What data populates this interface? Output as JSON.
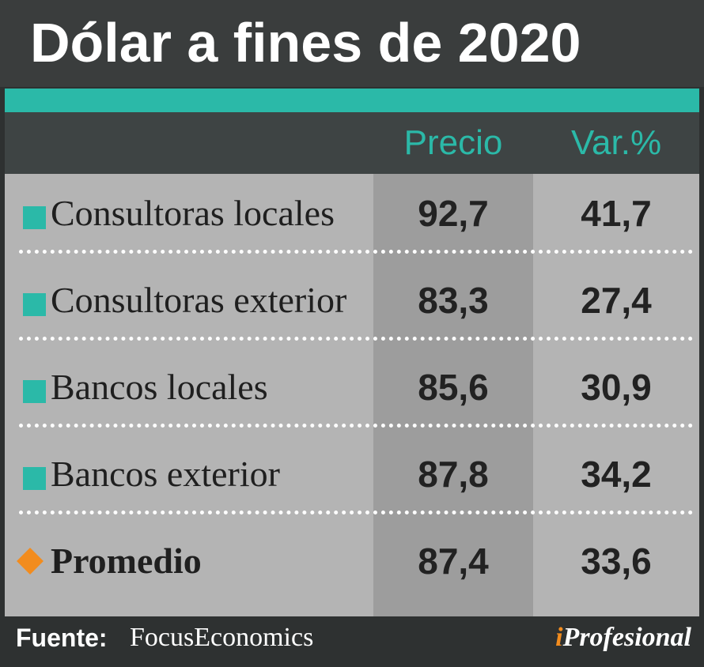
{
  "title": "Dólar a fines de 2020",
  "colors": {
    "accent": "#2bb9a8",
    "header_text": "#2bb9a8",
    "bullet": "#2bb9a8",
    "highlight_bullet": "#f28c1e",
    "brand_i": "#f28c1e"
  },
  "chart_data": {
    "type": "table",
    "title": "Dólar a fines de 2020",
    "columns": [
      "Precio",
      "Var.%"
    ],
    "rows": [
      {
        "label": "Consultoras locales",
        "precio": "92,7",
        "var": "41,7",
        "marker": "square"
      },
      {
        "label": "Consultoras exterior",
        "precio": "83,3",
        "var": "27,4",
        "marker": "square"
      },
      {
        "label": "Bancos locales",
        "precio": "85,6",
        "var": "30,9",
        "marker": "square"
      },
      {
        "label": "Bancos exterior",
        "precio": "87,8",
        "var": "34,2",
        "marker": "square"
      },
      {
        "label": "Promedio",
        "precio": "87,4",
        "var": "33,6",
        "marker": "diamond",
        "bold": true
      }
    ]
  },
  "footer": {
    "source_label": "Fuente:",
    "source_value": "FocusEconomics",
    "brand_i": "i",
    "brand_rest": "Profesional"
  }
}
